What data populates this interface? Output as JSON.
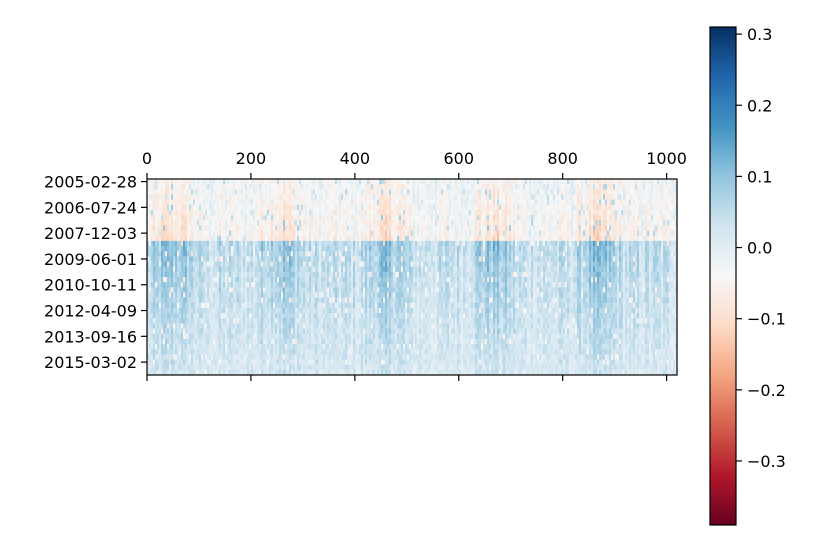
{
  "chart_data": {
    "type": "heatmap",
    "title": "",
    "xlabel": "",
    "ylabel": "",
    "x_axis_position": "top",
    "x_ticks": [
      0,
      200,
      400,
      600,
      800,
      1000
    ],
    "x_tick_labels": [
      "0",
      "200",
      "400",
      "600",
      "800",
      "1000"
    ],
    "x_range": [
      0,
      1020
    ],
    "y_tick_labels": [
      "2005-02-28",
      "2006-07-24",
      "2007-12-03",
      "2009-06-01",
      "2010-10-11",
      "2012-04-09",
      "2013-09-16",
      "2015-03-02"
    ],
    "rows_range": [
      0,
      38
    ],
    "colormap": "RdBu",
    "colorbar": {
      "position": "right",
      "range": [
        -0.39,
        0.31
      ],
      "ticks": [
        0.3,
        0.2,
        0.1,
        0.0,
        -0.1,
        -0.2,
        -0.3
      ],
      "tick_labels": [
        "0.3",
        "0.2",
        "0.1",
        "0.0",
        "−0.1",
        "−0.2",
        "−0.3"
      ],
      "color_stops": [
        "#67001f",
        "#b2182b",
        "#d6604d",
        "#f4a582",
        "#fddbc7",
        "#f7f7f7",
        "#d1e5f0",
        "#92c5de",
        "#4393c3",
        "#2166ac",
        "#053061"
      ]
    },
    "row_pattern": {
      "early_period_rows": [
        0,
        12
      ],
      "early_period_mean": -0.08,
      "late_period_rows": [
        12,
        38
      ],
      "late_period_mean": 0.07
    },
    "grid": false
  }
}
